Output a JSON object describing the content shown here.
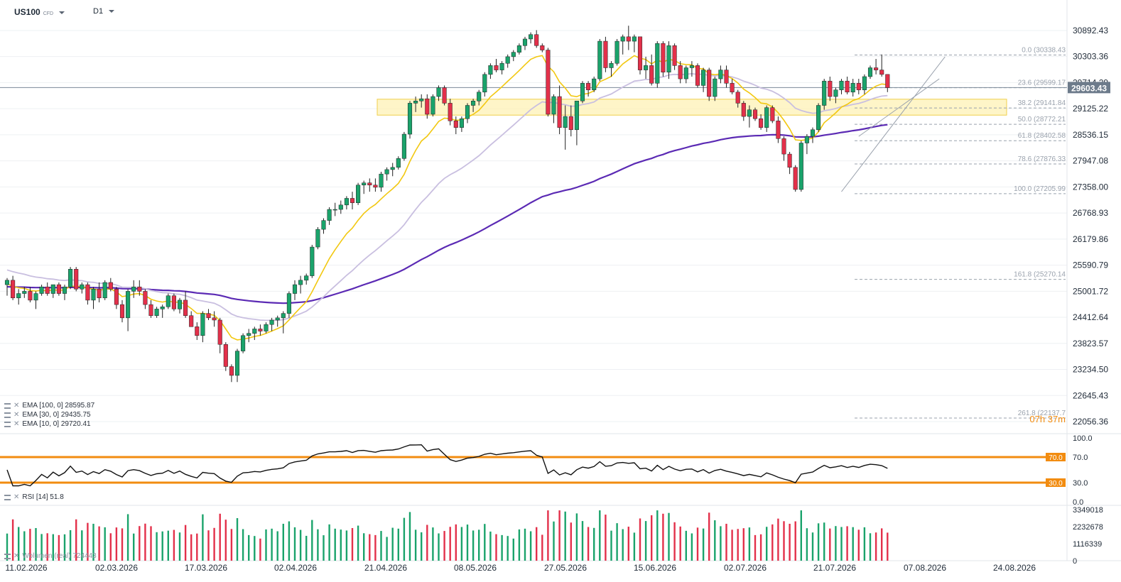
{
  "header": {
    "symbol": "US100",
    "symbol_type": "CFD",
    "timeframe": "D1"
  },
  "price_axis_labels": [
    "30892.43",
    "30303.36",
    "29714.29",
    "29125.22",
    "28536.15",
    "27947.08",
    "27358.00",
    "26768.93",
    "26179.86",
    "25590.79",
    "25001.72",
    "24412.64",
    "23823.57",
    "23234.50",
    "22645.43",
    "22056.36"
  ],
  "current_price": "29603.43",
  "countdown": "07h 37m",
  "legend": {
    "ema100": "EMA [100, 0] 28595.87",
    "ema30": "EMA [30, 0] 29435.75",
    "ema10": "EMA [10, 0] 29720.41",
    "rsi": "RSI [14] 51.8",
    "volume": "Wolumen (real) 724443"
  },
  "rsi_axis": [
    "100.0",
    "70.0",
    "30.0",
    "0.0"
  ],
  "volume_axis": [
    "3349018",
    "2232678",
    "1116339",
    "0"
  ],
  "date_labels": [
    "11.02.2026",
    "02.03.2026",
    "17.03.2026",
    "02.04.2026",
    "21.04.2026",
    "08.05.2026",
    "27.05.2026",
    "15.06.2026",
    "02.07.2026",
    "21.07.2026",
    "07.08.2026",
    "24.08.2026"
  ],
  "fibonacci": [
    {
      "label": "0.0 (30338.43",
      "value": 30338.43
    },
    {
      "label": "23.6 (29599.17",
      "value": 29599.17
    },
    {
      "label": "38.2 (29141.84",
      "value": 29141.84
    },
    {
      "label": "50.0 (28772.21",
      "value": 28772.21
    },
    {
      "label": "61.8 (28402.58",
      "value": 28402.58
    },
    {
      "label": "78.6 (27876.33",
      "value": 27876.33
    },
    {
      "label": "100.0 (27205.99",
      "value": 27205.99
    },
    {
      "label": "161.8 (25270.14",
      "value": 25270.14
    },
    {
      "label": "261.8 (22137.7",
      "value": 22137.7
    }
  ],
  "colors": {
    "up": "#1aa36b",
    "down": "#e3304a",
    "ema10": "#f2c811",
    "ema30": "#c9bfe0",
    "ema100": "#5b2ab4",
    "rsi_band": "#f28c10",
    "zone": "#fdf2b5",
    "zone_border": "#f0cf4c"
  },
  "chart_data": {
    "type": "candlestick",
    "y_range": [
      21800,
      31100
    ],
    "rsi_levels": [
      70,
      30
    ],
    "resistance_zone": [
      28980,
      29340
    ],
    "ohlc": [
      [
        25150,
        25300,
        24900,
        25250
      ],
      [
        25250,
        25350,
        24800,
        24850
      ],
      [
        24850,
        25050,
        24700,
        24950
      ],
      [
        24950,
        25100,
        24850,
        25000
      ],
      [
        25000,
        25100,
        24750,
        24800
      ],
      [
        24800,
        25000,
        24600,
        24950
      ],
      [
        24950,
        25150,
        24900,
        25100
      ],
      [
        25100,
        25200,
        24900,
        24950
      ],
      [
        24950,
        25150,
        24850,
        25150
      ],
      [
        25150,
        25200,
        24900,
        24950
      ],
      [
        24950,
        25150,
        24800,
        25100
      ],
      [
        25100,
        25550,
        25050,
        25500
      ],
      [
        25500,
        25550,
        25000,
        25050
      ],
      [
        25050,
        25200,
        24950,
        25150
      ],
      [
        25150,
        25200,
        24700,
        24800
      ],
      [
        24800,
        25100,
        24600,
        25050
      ],
      [
        25050,
        25200,
        24750,
        24850
      ],
      [
        24850,
        25250,
        24800,
        25200
      ],
      [
        25200,
        25300,
        25000,
        25050
      ],
      [
        25050,
        25100,
        24600,
        24700
      ],
      [
        24700,
        24800,
        24300,
        24400
      ],
      [
        24400,
        25050,
        24100,
        25000
      ],
      [
        25000,
        25250,
        24850,
        25100
      ],
      [
        25100,
        25250,
        24900,
        25000
      ],
      [
        25000,
        25050,
        24600,
        24700
      ],
      [
        24700,
        24800,
        24400,
        24450
      ],
      [
        24450,
        24650,
        24400,
        24600
      ],
      [
        24600,
        24700,
        24400,
        24650
      ],
      [
        24650,
        24950,
        24600,
        24900
      ],
      [
        24900,
        24950,
        24550,
        24600
      ],
      [
        24600,
        24850,
        24500,
        24800
      ],
      [
        24800,
        25000,
        24400,
        24450
      ],
      [
        24450,
        24550,
        24200,
        24200
      ],
      [
        24200,
        24300,
        23900,
        24000
      ],
      [
        24000,
        24550,
        23850,
        24500
      ],
      [
        24500,
        24600,
        24350,
        24400
      ],
      [
        24400,
        24550,
        24200,
        24350
      ],
      [
        24350,
        24400,
        23600,
        23800
      ],
      [
        23800,
        23850,
        23200,
        23300
      ],
      [
        23300,
        23350,
        22950,
        23100
      ],
      [
        23100,
        23700,
        22950,
        23650
      ],
      [
        23650,
        24050,
        23600,
        24000
      ],
      [
        24000,
        24150,
        23850,
        24050
      ],
      [
        24050,
        24200,
        23900,
        24150
      ],
      [
        24150,
        24250,
        24000,
        24100
      ],
      [
        24100,
        24300,
        24050,
        24250
      ],
      [
        24250,
        24400,
        24100,
        24350
      ],
      [
        24350,
        24450,
        24200,
        24400
      ],
      [
        24400,
        24550,
        24050,
        24500
      ],
      [
        24500,
        25000,
        24400,
        24950
      ],
      [
        24950,
        25250,
        24800,
        25150
      ],
      [
        25150,
        25350,
        24950,
        25250
      ],
      [
        25250,
        25400,
        25150,
        25350
      ],
      [
        25350,
        26050,
        25300,
        26000
      ],
      [
        26000,
        26450,
        25950,
        26400
      ],
      [
        26400,
        26650,
        26300,
        26600
      ],
      [
        26600,
        26900,
        26500,
        26850
      ],
      [
        26850,
        27000,
        26700,
        26850
      ],
      [
        26850,
        27050,
        26750,
        26950
      ],
      [
        26950,
        27150,
        26850,
        27100
      ],
      [
        27100,
        27250,
        26850,
        27000
      ],
      [
        27000,
        27450,
        26950,
        27400
      ],
      [
        27400,
        27500,
        27200,
        27450
      ],
      [
        27450,
        27550,
        27250,
        27400
      ],
      [
        27400,
        27550,
        27250,
        27350
      ],
      [
        27350,
        27700,
        27250,
        27650
      ],
      [
        27650,
        27800,
        27500,
        27750
      ],
      [
        27750,
        27900,
        27600,
        27800
      ],
      [
        27800,
        28050,
        27750,
        28000
      ],
      [
        28000,
        28600,
        27950,
        28550
      ],
      [
        28550,
        29300,
        28450,
        29250
      ],
      [
        29250,
        29400,
        29050,
        29300
      ],
      [
        29300,
        29450,
        29150,
        29350
      ],
      [
        29350,
        29450,
        28900,
        29000
      ],
      [
        29000,
        29450,
        28950,
        29400
      ],
      [
        29400,
        29650,
        29300,
        29600
      ],
      [
        29600,
        29650,
        29200,
        29250
      ],
      [
        29250,
        29350,
        28750,
        28850
      ],
      [
        28850,
        28950,
        28550,
        28700
      ],
      [
        28700,
        28950,
        28600,
        28900
      ],
      [
        28900,
        29250,
        28800,
        29200
      ],
      [
        29200,
        29350,
        29050,
        29300
      ],
      [
        29300,
        29550,
        29200,
        29500
      ],
      [
        29500,
        29950,
        29400,
        29900
      ],
      [
        29900,
        30150,
        29800,
        30100
      ],
      [
        30100,
        30250,
        29950,
        30000
      ],
      [
        30000,
        30200,
        29900,
        30150
      ],
      [
        30150,
        30350,
        30050,
        30300
      ],
      [
        30300,
        30450,
        30200,
        30400
      ],
      [
        30400,
        30600,
        30350,
        30550
      ],
      [
        30550,
        30750,
        30450,
        30700
      ],
      [
        30700,
        30850,
        30600,
        30800
      ],
      [
        30800,
        30900,
        30500,
        30550
      ],
      [
        30550,
        30600,
        30400,
        30450
      ],
      [
        30450,
        30500,
        28950,
        29000
      ],
      [
        29000,
        29450,
        28800,
        29400
      ],
      [
        29400,
        29650,
        28550,
        28700
      ],
      [
        28700,
        29200,
        28200,
        28950
      ],
      [
        28950,
        29200,
        28500,
        28650
      ],
      [
        28650,
        29300,
        28300,
        29300
      ],
      [
        29300,
        29750,
        29250,
        29700
      ],
      [
        29700,
        29750,
        29400,
        29550
      ],
      [
        29550,
        29850,
        29500,
        29800
      ],
      [
        29800,
        30700,
        29750,
        30650
      ],
      [
        30650,
        30750,
        29950,
        30050
      ],
      [
        30050,
        30200,
        29850,
        30150
      ],
      [
        30150,
        30700,
        30100,
        30650
      ],
      [
        30650,
        30800,
        30350,
        30750
      ],
      [
        30750,
        31000,
        30450,
        30650
      ],
      [
        30650,
        30800,
        30400,
        30750
      ],
      [
        30750,
        30750,
        29900,
        30000
      ],
      [
        30000,
        30300,
        29800,
        30100
      ],
      [
        30100,
        30350,
        29650,
        29700
      ],
      [
        29700,
        30650,
        29600,
        30600
      ],
      [
        30600,
        30650,
        29850,
        29950
      ],
      [
        29950,
        30650,
        29800,
        30550
      ],
      [
        30550,
        30600,
        30000,
        30100
      ],
      [
        30100,
        30200,
        29700,
        29800
      ],
      [
        29800,
        30100,
        29700,
        30050
      ],
      [
        30050,
        30200,
        29850,
        30100
      ],
      [
        30100,
        30150,
        29600,
        29650
      ],
      [
        29650,
        30050,
        29500,
        30000
      ],
      [
        30000,
        30050,
        29300,
        29400
      ],
      [
        29400,
        29850,
        29300,
        29800
      ],
      [
        29800,
        30100,
        29700,
        30000
      ],
      [
        30000,
        30100,
        29600,
        29700
      ],
      [
        29700,
        29800,
        29450,
        29500
      ],
      [
        29500,
        29550,
        29150,
        29250
      ],
      [
        29250,
        29300,
        28850,
        28950
      ],
      [
        28950,
        29200,
        28700,
        29100
      ],
      [
        29100,
        29150,
        28850,
        28900
      ],
      [
        28900,
        29000,
        28650,
        28700
      ],
      [
        28700,
        29200,
        28600,
        29150
      ],
      [
        29150,
        29200,
        28800,
        28850
      ],
      [
        28850,
        28950,
        28350,
        28450
      ],
      [
        28450,
        28500,
        27950,
        28100
      ],
      [
        28100,
        28150,
        27650,
        27800
      ],
      [
        27800,
        27850,
        27250,
        27300
      ],
      [
        27300,
        28400,
        27250,
        28350
      ],
      [
        28350,
        28550,
        28100,
        28500
      ],
      [
        28500,
        28700,
        28350,
        28650
      ],
      [
        28650,
        29250,
        28600,
        29200
      ],
      [
        29200,
        29800,
        29100,
        29750
      ],
      [
        29750,
        29850,
        29300,
        29400
      ],
      [
        29400,
        29600,
        29250,
        29550
      ],
      [
        29550,
        29800,
        29450,
        29750
      ],
      [
        29750,
        29850,
        29450,
        29500
      ],
      [
        29500,
        29800,
        29400,
        29700
      ],
      [
        29700,
        29800,
        29450,
        29550
      ],
      [
        29550,
        29900,
        29450,
        29850
      ],
      [
        29850,
        30100,
        29800,
        30050
      ],
      [
        30050,
        30250,
        29900,
        30000
      ],
      [
        30000,
        30350,
        29850,
        29900
      ],
      [
        29900,
        29900,
        29500,
        29600
      ]
    ]
  }
}
